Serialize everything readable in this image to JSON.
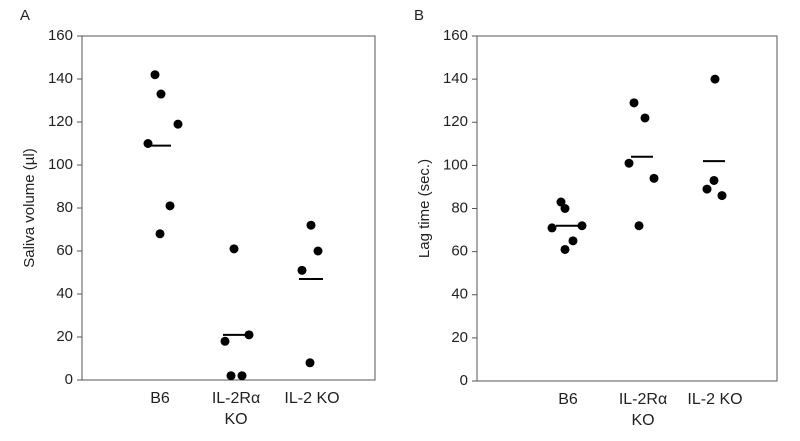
{
  "chart_data": [
    {
      "type": "dot",
      "panel_label": "A",
      "ylabel": "Saliva volume (µl)",
      "categories": [
        "B6",
        "IL-2Rα KO",
        "IL-2 KO"
      ],
      "groups": [
        [
          142,
          133,
          119,
          110,
          81,
          68
        ],
        [
          61,
          18,
          21,
          2,
          2
        ],
        [
          72,
          60,
          51,
          8
        ]
      ],
      "means": [
        109,
        21,
        47
      ],
      "ylim": [
        0,
        160
      ],
      "yticks": [
        0,
        20,
        40,
        60,
        80,
        100,
        120,
        140,
        160
      ],
      "color": "#000000"
    },
    {
      "type": "dot",
      "panel_label": "B",
      "ylabel": "Lag time (sec.)",
      "categories": [
        "B6",
        "IL-2Rα KO",
        "IL-2 KO"
      ],
      "groups": [
        [
          83,
          80,
          71,
          72,
          65,
          61
        ],
        [
          129,
          122,
          101,
          94,
          72
        ],
        [
          140,
          93,
          89,
          86
        ]
      ],
      "means": [
        72,
        104,
        102
      ],
      "ylim": [
        0,
        160
      ],
      "yticks": [
        0,
        20,
        40,
        60,
        80,
        100,
        120,
        140,
        160
      ],
      "color": "#000000"
    }
  ]
}
